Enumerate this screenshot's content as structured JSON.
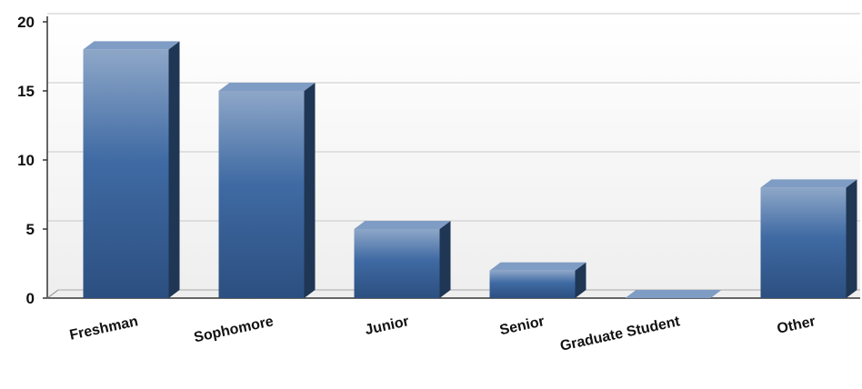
{
  "chart_data": {
    "type": "bar",
    "categories": [
      "Freshman",
      "Sophomore",
      "Junior",
      "Senior",
      "Graduate Student",
      "Other"
    ],
    "values": [
      18,
      15,
      5,
      2,
      0,
      8
    ],
    "ylim": [
      0,
      20
    ],
    "yticks": [
      "0",
      "5",
      "10",
      "15",
      "20"
    ],
    "grid": true,
    "colors": {
      "bar_front_top": "#8ea7c8",
      "bar_front_mid": "#3f6aa3",
      "bar_front_bottom": "#2c4f80",
      "bar_side": "#1f3655",
      "bar_top": "#7f9cc4",
      "plot_back": "#f4f4f4",
      "grid": "#c8c8c8",
      "axis": "#333333"
    }
  }
}
